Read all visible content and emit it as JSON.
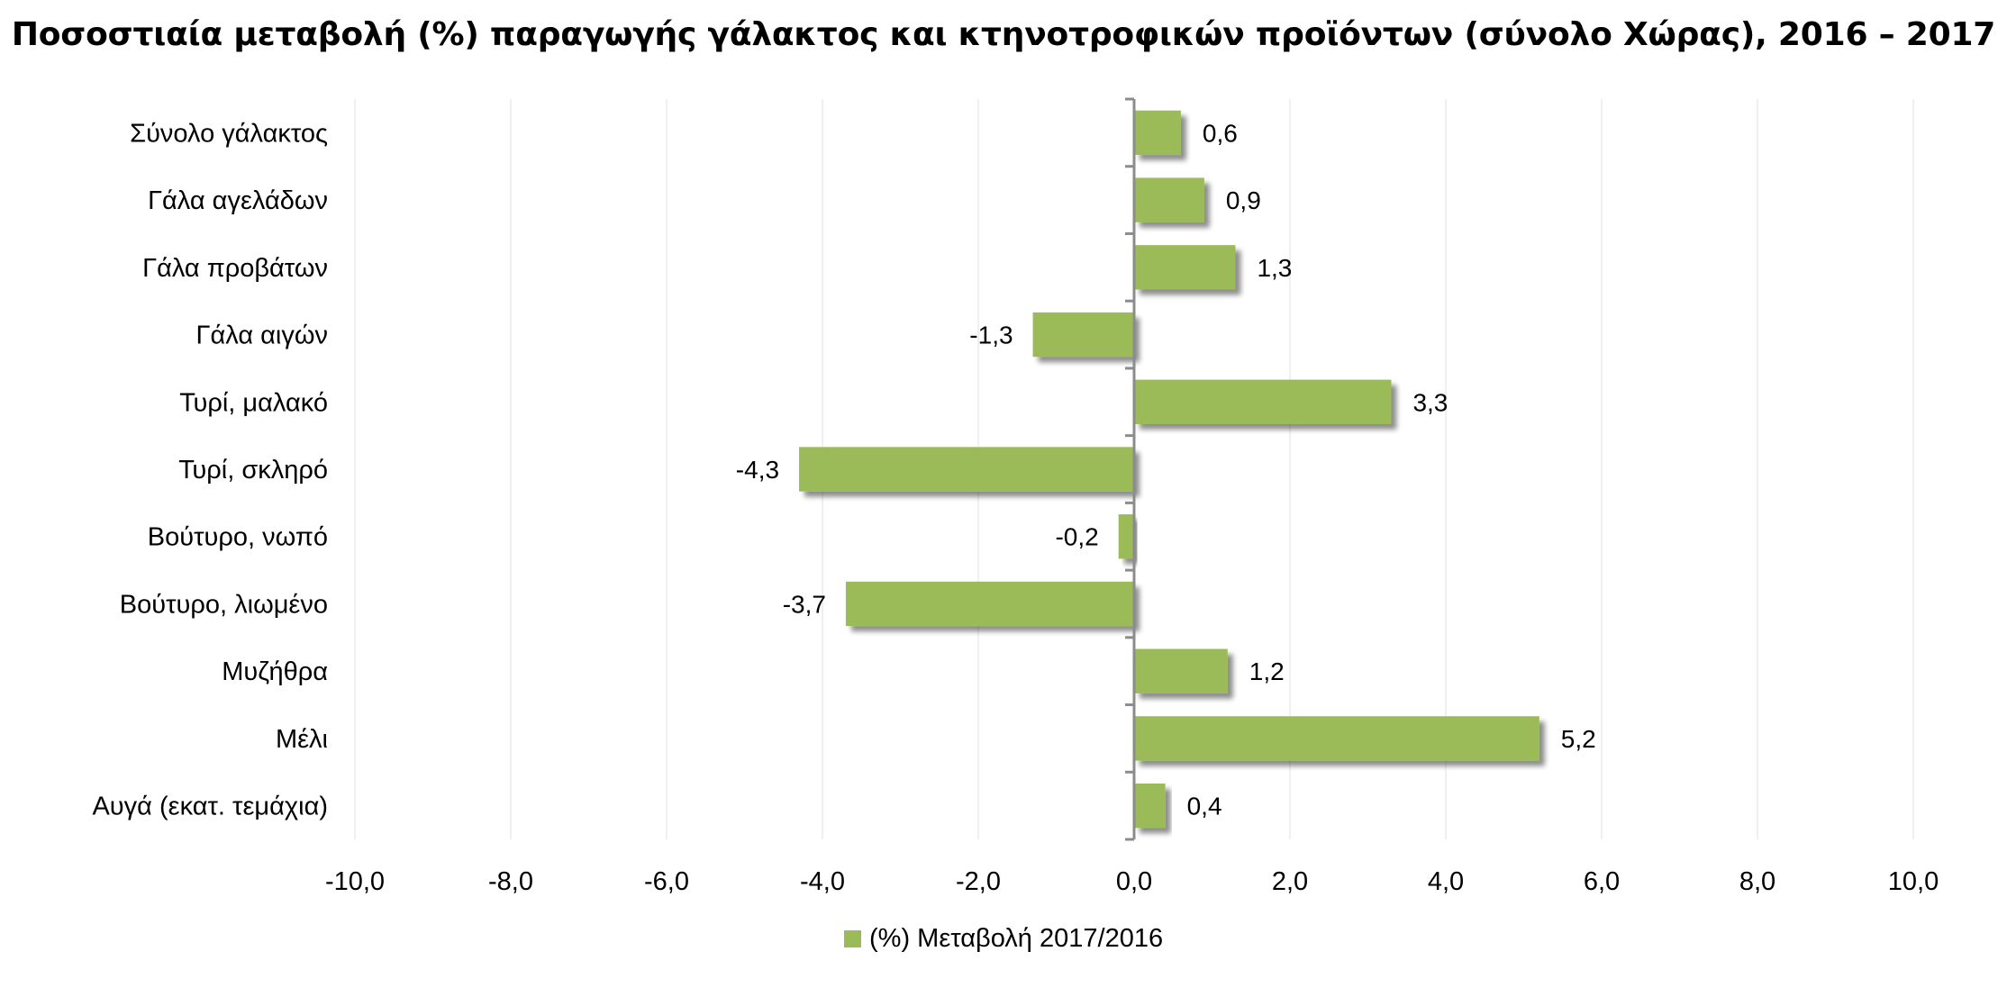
{
  "chart_data": {
    "type": "bar",
    "orientation": "horizontal",
    "title": "Ποσοστιαία μεταβολή (%) παραγωγής γάλακτος και κτηνοτροφικών προϊόντων (σύνολο Χώρας), 2016 – 2017",
    "categories": [
      "Σύνολο γάλακτος",
      "Γάλα αγελάδων",
      "Γάλα προβάτων",
      "Γάλα αιγών",
      "Τυρί, μαλακό",
      "Τυρί, σκληρό",
      "Βούτυρο, νωπό",
      "Βούτυρο, λιωμένο",
      "Μυζήθρα",
      "Μέλι",
      "Αυγά (εκατ. τεμάχια)"
    ],
    "series": [
      {
        "name": "(%) Μεταβολή 2017/2016",
        "values": [
          0.6,
          0.9,
          1.3,
          -1.3,
          3.3,
          -4.3,
          -0.2,
          -3.7,
          1.2,
          5.2,
          0.4
        ],
        "value_labels": [
          "0,6",
          "0,9",
          "1,3",
          "-1,3",
          "3,3",
          "-4,3",
          "-0,2",
          "-3,7",
          "1,2",
          "5,2",
          "0,4"
        ],
        "color": "#9bbb59"
      }
    ],
    "xlim": [
      -10,
      10
    ],
    "x_ticks": [
      -10,
      -8,
      -6,
      -4,
      -2,
      0,
      2,
      4,
      6,
      8,
      10
    ],
    "x_tick_labels": [
      "-10,0",
      "-8,0",
      "-6,0",
      "-4,0",
      "-2,0",
      "0,0",
      "2,0",
      "4,0",
      "6,0",
      "8,0",
      "10,0"
    ],
    "xlabel": "",
    "ylabel": "",
    "grid": true,
    "legend_position": "bottom",
    "colors": {
      "bar": "#9bbb59",
      "grid": "#ececec",
      "axis": "#8c8c8c",
      "shadow": "#8a8a8a"
    }
  }
}
